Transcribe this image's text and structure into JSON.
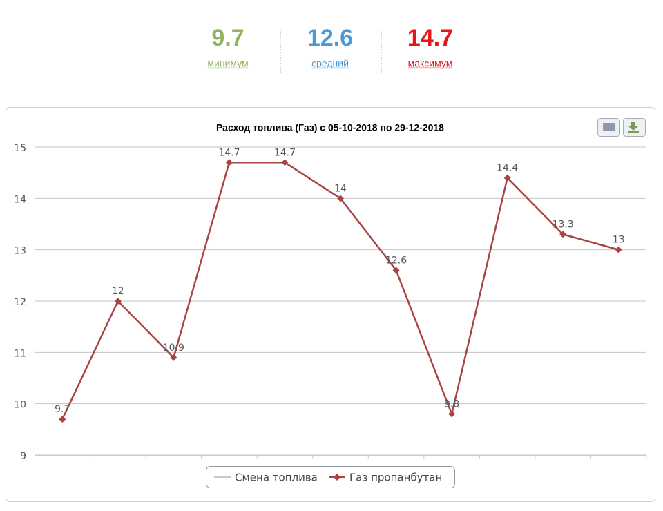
{
  "stats": [
    {
      "value": 9.7,
      "label": "минимум",
      "color": "#8db55b"
    },
    {
      "value": 12.6,
      "label": "средний",
      "color": "#4b9ad8"
    },
    {
      "value": 14.7,
      "label": "максимум",
      "color": "#e8141c"
    }
  ],
  "chart_data": {
    "type": "line",
    "title": "Расход топлива (Газ) с 05-10-2018 по 29-12-2018",
    "categories": [
      null,
      null,
      null,
      null,
      null,
      null,
      null,
      null,
      null,
      null,
      null
    ],
    "series": [
      {
        "name": "Смена топлива",
        "color": "#c8c8c8",
        "values": [
          null,
          null,
          null,
          null,
          null,
          null,
          null,
          null,
          null,
          null,
          null
        ]
      },
      {
        "name": "Газ пропанбутан",
        "color": "#a84444",
        "values": [
          9.7,
          12,
          10.9,
          14.7,
          14.7,
          14,
          12.6,
          9.8,
          14.4,
          13.3,
          13
        ]
      }
    ],
    "ylim": [
      9,
      15
    ],
    "yticks": [
      9,
      10,
      11,
      12,
      13,
      14,
      15
    ],
    "grid": true,
    "legend": "bottom"
  }
}
